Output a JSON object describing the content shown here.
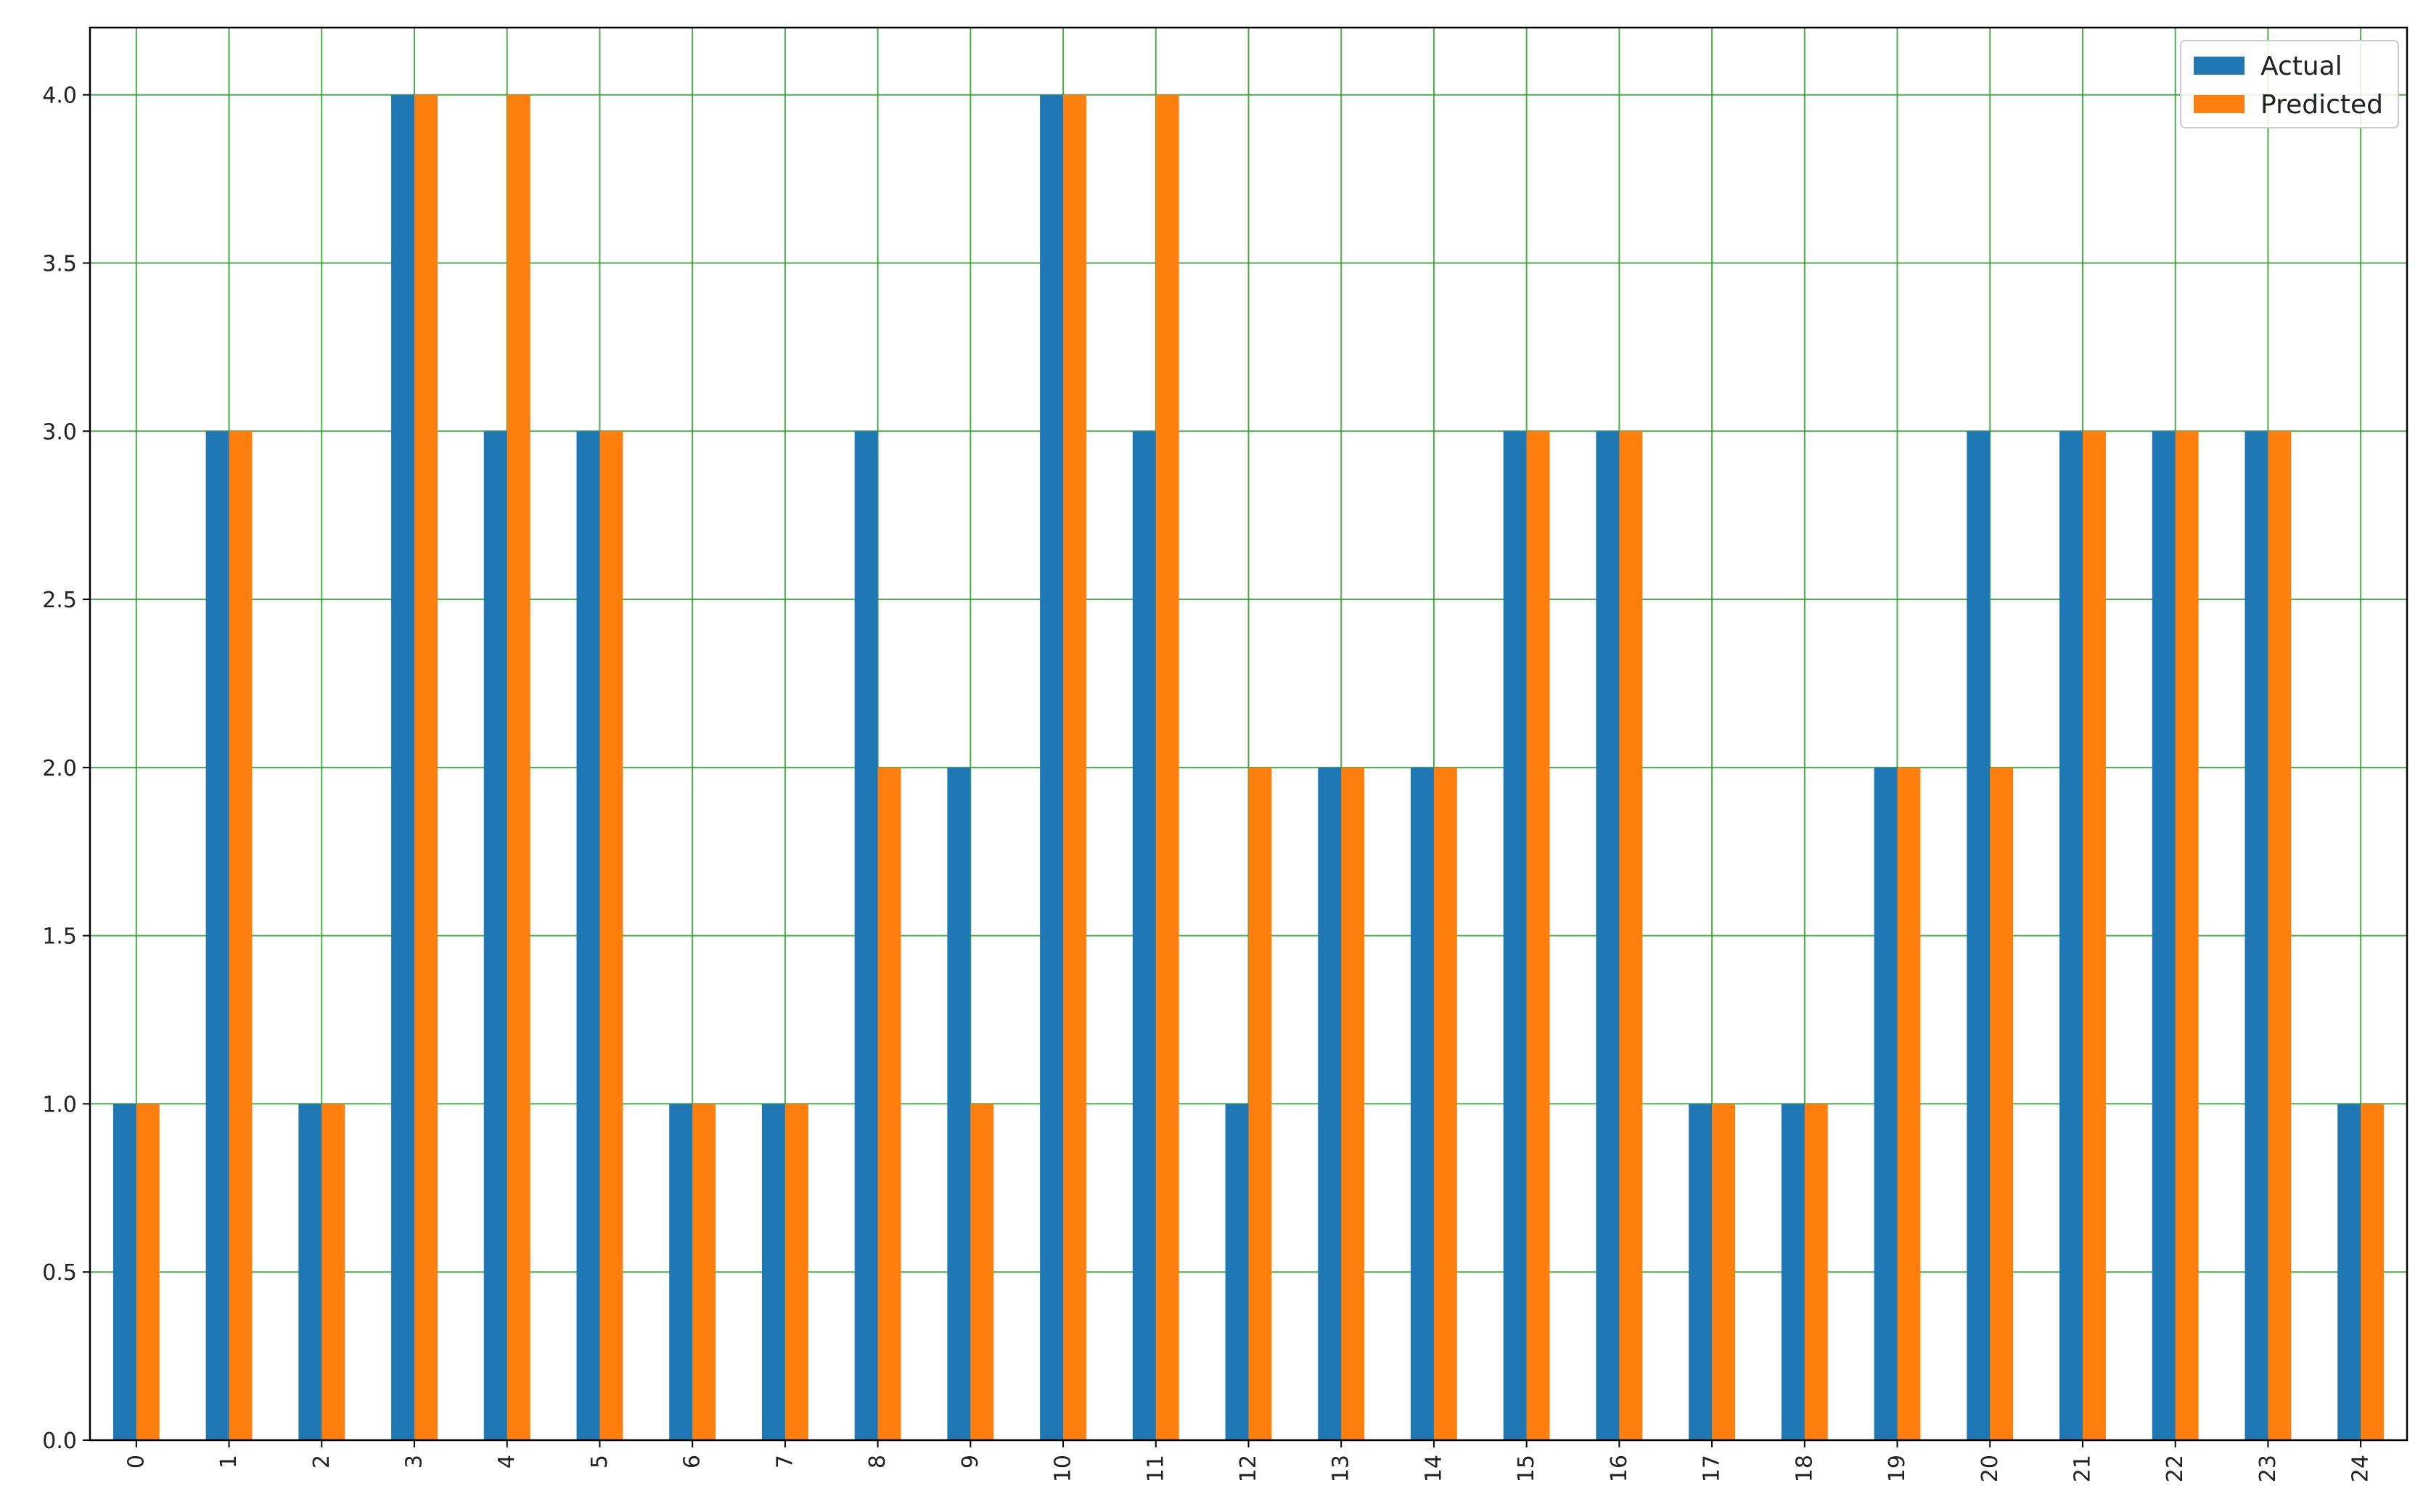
{
  "chart_data": {
    "type": "bar",
    "title": "",
    "xlabel": "",
    "ylabel": "",
    "categories": [
      "0",
      "1",
      "2",
      "3",
      "4",
      "5",
      "6",
      "7",
      "8",
      "9",
      "10",
      "11",
      "12",
      "13",
      "14",
      "15",
      "16",
      "17",
      "18",
      "19",
      "20",
      "21",
      "22",
      "23",
      "24"
    ],
    "series": [
      {
        "name": "Actual",
        "color": "#1f77b4",
        "values": [
          1,
          3,
          1,
          4,
          3,
          3,
          1,
          1,
          3,
          2,
          4,
          3,
          1,
          2,
          2,
          3,
          3,
          1,
          1,
          2,
          3,
          3,
          3,
          3,
          1
        ]
      },
      {
        "name": "Predicted",
        "color": "#ff7f0e",
        "values": [
          1,
          3,
          1,
          4,
          4,
          3,
          1,
          1,
          2,
          1,
          4,
          4,
          2,
          2,
          2,
          3,
          3,
          1,
          1,
          2,
          2,
          3,
          3,
          3,
          1
        ]
      }
    ],
    "ylim": [
      0,
      4.2
    ],
    "yticks": [
      "0.0",
      "0.5",
      "1.0",
      "1.5",
      "2.0",
      "2.5",
      "3.0",
      "3.5",
      "4.0"
    ],
    "grid": true,
    "grid_color": "#2ca02c",
    "xtick_rotation": "vertical",
    "legend_position": "top-right"
  }
}
